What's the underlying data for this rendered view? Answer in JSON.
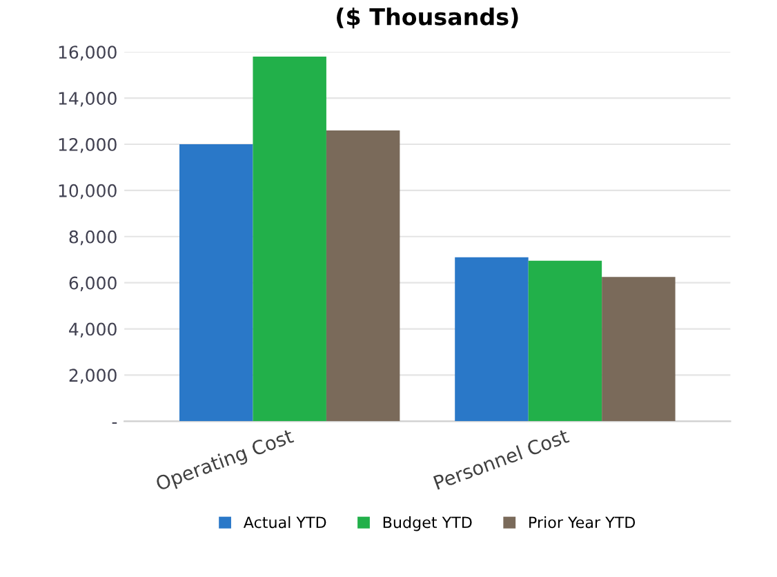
{
  "chart_data": {
    "type": "bar",
    "title": "($ Thousands)",
    "categories": [
      "Operating Cost",
      "Personnel Cost"
    ],
    "series": [
      {
        "name": "Actual YTD",
        "color": "#2a78c8",
        "values": [
          12000,
          7100
        ]
      },
      {
        "name": "Budget YTD",
        "color": "#22b04a",
        "values": [
          15800,
          6950
        ]
      },
      {
        "name": "Prior Year YTD",
        "color": "#7a6a5a",
        "values": [
          12600,
          6250
        ]
      }
    ],
    "ylim": [
      0,
      16000
    ],
    "yticks": [
      {
        "value": 0,
        "label": "-"
      },
      {
        "value": 2000,
        "label": "2,000"
      },
      {
        "value": 4000,
        "label": "4,000"
      },
      {
        "value": 6000,
        "label": "6,000"
      },
      {
        "value": 8000,
        "label": "8,000"
      },
      {
        "value": 10000,
        "label": "10,000"
      },
      {
        "value": 12000,
        "label": "12,000"
      },
      {
        "value": 14000,
        "label": "14,000"
      },
      {
        "value": 16000,
        "label": "16,000"
      }
    ],
    "grid": "y",
    "legend": "bottom"
  }
}
